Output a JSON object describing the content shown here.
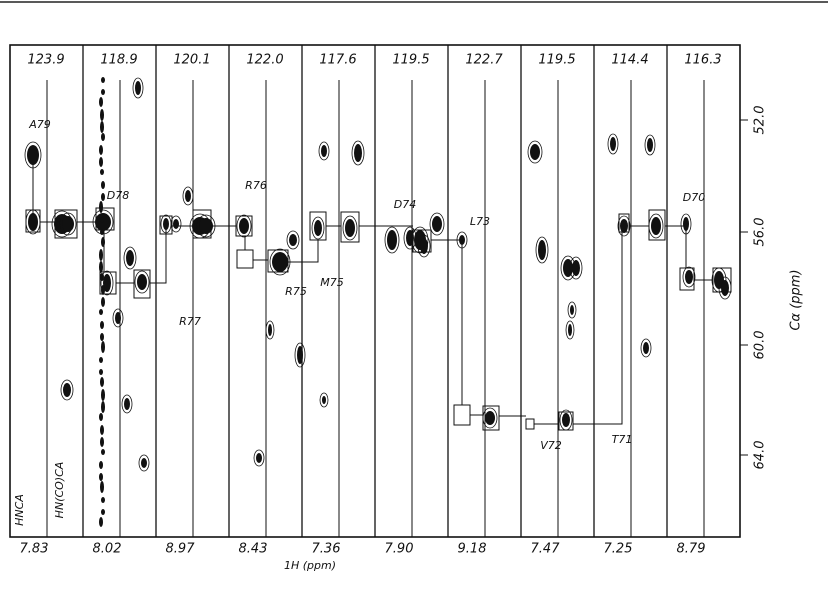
{
  "strips": [
    {
      "header": "123.9",
      "proton": "7.83"
    },
    {
      "header": "118.9",
      "proton": "8.02"
    },
    {
      "header": "120.1",
      "proton": "8.97"
    },
    {
      "header": "122.0",
      "proton": "8.43"
    },
    {
      "header": "117.6",
      "proton": "7.36"
    },
    {
      "header": "119.5",
      "proton": "7.90"
    },
    {
      "header": "122.7",
      "proton": "9.18"
    },
    {
      "header": "119.5",
      "proton": "7.47"
    },
    {
      "header": "114.4",
      "proton": "7.25"
    },
    {
      "header": "116.3",
      "proton": "8.79"
    }
  ],
  "experiments": [
    "HNCA",
    "HN(CO)CA"
  ],
  "residues": [
    "A79",
    "D78",
    "R77",
    "R76",
    "R75",
    "M75",
    "D74",
    "L73",
    "V72",
    "T71",
    "D70"
  ],
  "x_axis_title": "1H (ppm)",
  "y_axis": {
    "title": "Cα (ppm)",
    "ticks": [
      "52.0",
      "56.0",
      "60.0",
      "64.0"
    ]
  }
}
